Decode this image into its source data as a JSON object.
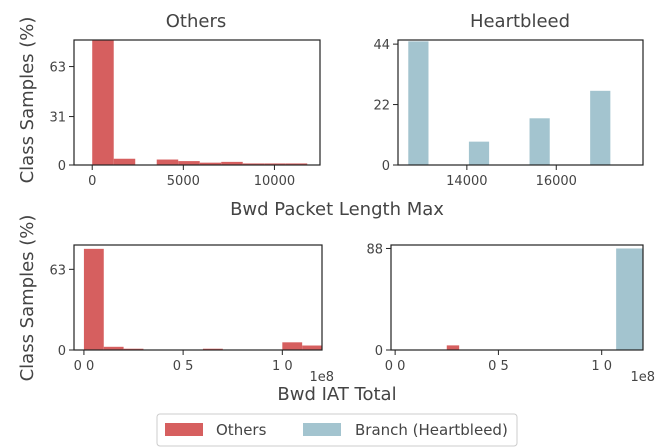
{
  "colors": {
    "others": "#d65f5f",
    "branch": "#a3c4cf",
    "axis": "#222222",
    "text": "#444444"
  },
  "legend": [
    {
      "label": "Others",
      "color": "#d65f5f"
    },
    {
      "label": "Branch (Heartbleed)",
      "color": "#a3c4cf"
    }
  ],
  "row_labels": {
    "top_x": "Bwd Packet Length Max",
    "bottom_x": "Bwd IAT Total",
    "y": "Class Samples (%)"
  },
  "chart_data": [
    {
      "type": "bar",
      "title": "Others",
      "xlabel": "Bwd Packet Length Max",
      "ylabel": "Class Samples (%)",
      "xlim": [
        -1000,
        12500
      ],
      "ylim": [
        0,
        80
      ],
      "xticks": [
        0,
        5000,
        10000
      ],
      "xtick_labels": [
        "0",
        "5000",
        "10000"
      ],
      "yticks": [
        0,
        31,
        63
      ],
      "ytick_labels": [
        "0",
        "31",
        "63"
      ],
      "bin_width": 1180,
      "series": [
        {
          "name": "Others",
          "color": "#d65f5f",
          "bins": [
            0,
            1180,
            2360,
            3540,
            4720,
            5900,
            7080,
            8260,
            9440,
            10620
          ],
          "values": [
            80,
            4,
            0,
            3.5,
            2.5,
            1.5,
            2,
            1,
            1,
            1
          ]
        }
      ]
    },
    {
      "type": "bar",
      "title": "Heartbleed",
      "xlabel": "Bwd Packet Length Max",
      "ylabel": "",
      "xlim": [
        12460,
        17940
      ],
      "ylim": [
        0,
        45.5
      ],
      "xticks": [
        14000,
        16000
      ],
      "xtick_labels": [
        "14000",
        "16000"
      ],
      "yticks": [
        0,
        22,
        44
      ],
      "ytick_labels": [
        "0",
        "22",
        "44"
      ],
      "bin_width": 452,
      "series": [
        {
          "name": "Branch (Heartbleed)",
          "color": "#a3c4cf",
          "bins": [
            12690,
            14046,
            15402,
            16758
          ],
          "values": [
            45,
            8.5,
            17,
            27
          ]
        }
      ]
    },
    {
      "type": "bar",
      "title": "",
      "xlabel": "Bwd IAT Total",
      "ylabel": "Class Samples (%)",
      "xlim": [
        -0.05,
        1.2
      ],
      "ylim": [
        0,
        82
      ],
      "xticks": [
        0,
        0.5,
        1.0
      ],
      "xtick_labels": [
        "0 0",
        "0 5",
        "1 0"
      ],
      "yticks": [
        0,
        63
      ],
      "ytick_labels": [
        "0",
        "63"
      ],
      "offset_label": "1e8",
      "bin_width": 0.1,
      "series": [
        {
          "name": "Others",
          "color": "#d65f5f",
          "bins": [
            0,
            0.1,
            0.2,
            0.3,
            0.4,
            0.5,
            0.6,
            0.7,
            0.8,
            0.9,
            1.0,
            1.1
          ],
          "values": [
            79,
            2.5,
            1,
            0,
            0,
            0,
            1,
            0,
            0,
            0,
            6,
            3.5
          ]
        }
      ]
    },
    {
      "type": "bar",
      "title": "",
      "xlabel": "Bwd IAT Total",
      "ylabel": "",
      "xlim": [
        -0.02,
        1.2
      ],
      "ylim": [
        0,
        91
      ],
      "xticks": [
        0,
        0.5,
        1.0
      ],
      "xtick_labels": [
        "0 0",
        "0 5",
        "1 0"
      ],
      "yticks": [
        0,
        88
      ],
      "ytick_labels": [
        "0",
        "88"
      ],
      "offset_label": "1e8",
      "series": [
        {
          "name": "Others",
          "color": "#d65f5f",
          "bins": [
            0.25
          ],
          "values": [
            4
          ],
          "bin_width": 0.06
        },
        {
          "name": "Branch (Heartbleed)",
          "color": "#a3c4cf",
          "bins": [
            1.07
          ],
          "values": [
            88
          ],
          "bin_width": 0.13
        }
      ]
    }
  ]
}
